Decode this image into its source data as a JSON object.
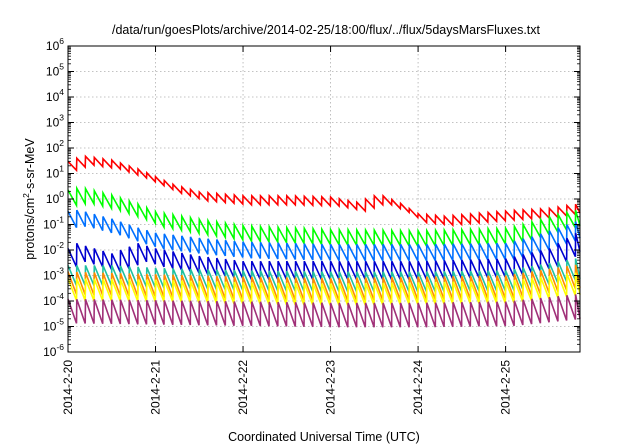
{
  "chart_data": {
    "type": "line",
    "title": "/data/run/goesPlots/archive/2014-02-25/18:00/flux/../flux/5daysMarsFluxes.txt",
    "xlabel": "Coordinated Universal Time (UTC)",
    "ylabel": {
      "prefix": "protons/cm",
      "sup": "2",
      "suffix": "-s-sr-MeV"
    },
    "x_ticks": [
      "2014-2-20",
      "2014-2-21",
      "2014-2-22",
      "2014-2-23",
      "2014-2-24",
      "2014-2-25"
    ],
    "x_range_days": [
      0,
      5.85
    ],
    "y_scale": "log",
    "ylim": [
      1e-06,
      1000000.0
    ],
    "y_ticks": [
      {
        "base": "10",
        "exp": "-6"
      },
      {
        "base": "10",
        "exp": "-5"
      },
      {
        "base": "10",
        "exp": "-4"
      },
      {
        "base": "10",
        "exp": "-3"
      },
      {
        "base": "10",
        "exp": "-2"
      },
      {
        "base": "10",
        "exp": "-1"
      },
      {
        "base": "10",
        "exp": "0"
      },
      {
        "base": "10",
        "exp": "1"
      },
      {
        "base": "10",
        "exp": "2"
      },
      {
        "base": "10",
        "exp": "3"
      },
      {
        "base": "10",
        "exp": "4"
      },
      {
        "base": "10",
        "exp": "5"
      },
      {
        "base": "10",
        "exp": "6"
      }
    ],
    "grid": true,
    "sawtooth_period_days": 0.1,
    "series": [
      {
        "color": "#ff0000",
        "amp": 1.5,
        "base_log": [
          [
            0,
            1.3
          ],
          [
            0.12,
            1.45
          ],
          [
            0.2,
            1.5
          ],
          [
            0.5,
            1.35
          ],
          [
            0.8,
            1.0
          ],
          [
            1.2,
            0.4
          ],
          [
            1.5,
            0.1
          ],
          [
            2.0,
            -0.05
          ],
          [
            2.5,
            -0.05
          ],
          [
            3.0,
            -0.1
          ],
          [
            3.3,
            -0.3
          ],
          [
            3.5,
            -0.05
          ],
          [
            3.6,
            -0.05
          ],
          [
            3.8,
            -0.35
          ],
          [
            4.0,
            -0.75
          ],
          [
            4.3,
            -0.85
          ],
          [
            4.8,
            -0.7
          ],
          [
            5.2,
            -0.6
          ],
          [
            5.5,
            -0.55
          ],
          [
            5.85,
            -0.35
          ]
        ]
      },
      {
        "color": "#00ff00",
        "amp": 2.0,
        "base_log": [
          [
            0,
            0.05
          ],
          [
            0.15,
            0.15
          ],
          [
            0.5,
            -0.15
          ],
          [
            0.8,
            -0.5
          ],
          [
            1.0,
            -0.8
          ],
          [
            1.5,
            -1.1
          ],
          [
            2.0,
            -1.35
          ],
          [
            3.0,
            -1.5
          ],
          [
            4.0,
            -1.55
          ],
          [
            5.0,
            -1.45
          ],
          [
            5.2,
            -1.3
          ],
          [
            5.5,
            -1.0
          ],
          [
            5.85,
            -0.7
          ]
        ]
      },
      {
        "color": "#0070ff",
        "amp": 2.1,
        "base_log": [
          [
            0,
            -0.8
          ],
          [
            0.12,
            -0.75
          ],
          [
            0.5,
            -1.1
          ],
          [
            0.8,
            -1.45
          ],
          [
            1.0,
            -1.65
          ],
          [
            1.5,
            -1.85
          ],
          [
            2.0,
            -2.0
          ],
          [
            3.0,
            -2.1
          ],
          [
            4.0,
            -2.1
          ],
          [
            5.0,
            -2.05
          ],
          [
            5.3,
            -1.8
          ],
          [
            5.85,
            -1.15
          ]
        ]
      },
      {
        "color": "#0000d0",
        "amp": 2.3,
        "base_log": [
          [
            0,
            -2.3
          ],
          [
            0.1,
            -2.1
          ],
          [
            0.5,
            -2.5
          ],
          [
            0.8,
            -2.1
          ],
          [
            1.0,
            -2.3
          ],
          [
            1.5,
            -2.6
          ],
          [
            2.0,
            -2.8
          ],
          [
            3.0,
            -2.8
          ],
          [
            4.0,
            -2.8
          ],
          [
            5.0,
            -2.7
          ],
          [
            5.5,
            -2.3
          ],
          [
            5.85,
            -1.6
          ]
        ]
      },
      {
        "color": "#20c0a0",
        "amp": 2.5,
        "base_log": [
          [
            0,
            -3.0
          ],
          [
            0.5,
            -3.0
          ],
          [
            1.0,
            -3.1
          ],
          [
            2.0,
            -3.2
          ],
          [
            3.0,
            -3.25
          ],
          [
            4.0,
            -3.25
          ],
          [
            5.0,
            -3.2
          ],
          [
            5.85,
            -2.7
          ]
        ]
      },
      {
        "color": "#ff8c00",
        "amp": 2.8,
        "base_log": [
          [
            0,
            -3.3
          ],
          [
            1.0,
            -3.4
          ],
          [
            2.0,
            -3.5
          ],
          [
            3.0,
            -3.55
          ],
          [
            4.0,
            -3.5
          ],
          [
            5.0,
            -3.45
          ],
          [
            5.85,
            -3.0
          ]
        ]
      },
      {
        "color": "#ffff00",
        "amp": 2.7,
        "base_log": [
          [
            0,
            -3.55
          ],
          [
            1.0,
            -3.6
          ],
          [
            2.0,
            -3.7
          ],
          [
            3.0,
            -3.75
          ],
          [
            4.0,
            -3.7
          ],
          [
            5.0,
            -3.65
          ],
          [
            5.85,
            -3.3
          ]
        ]
      },
      {
        "color": "#a03078",
        "amp": 3.0,
        "base_log": [
          [
            0,
            -4.4
          ],
          [
            1.0,
            -4.45
          ],
          [
            2.0,
            -4.5
          ],
          [
            3.0,
            -4.55
          ],
          [
            4.0,
            -4.55
          ],
          [
            5.0,
            -4.5
          ],
          [
            5.85,
            -4.2
          ]
        ]
      }
    ]
  }
}
